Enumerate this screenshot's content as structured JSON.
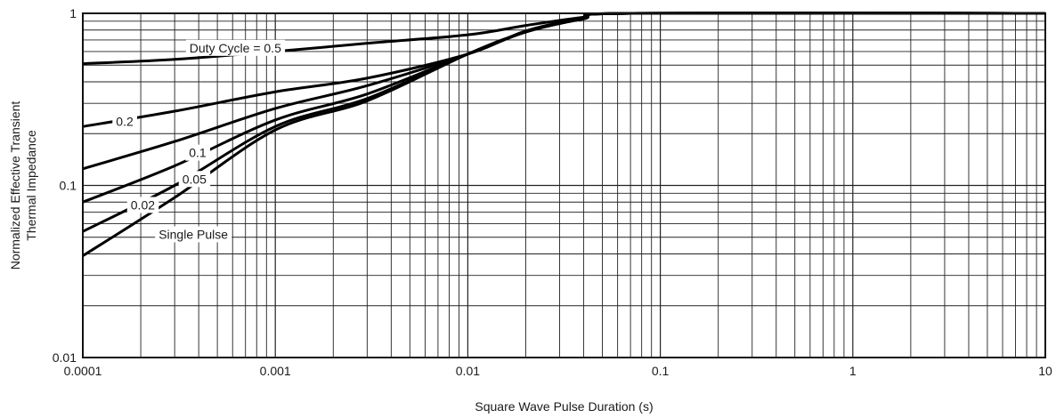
{
  "chart_data": {
    "type": "line",
    "xlabel": "Square Wave Pulse Duration (s)",
    "ylabel_line1": "Normalized Effective Transient",
    "ylabel_line2": "Thermal Impedance",
    "x_scale": "log",
    "y_scale": "log",
    "xlim": [
      0.0001,
      10
    ],
    "ylim": [
      0.01,
      1
    ],
    "grid": true,
    "x_ticks": [
      {
        "value": 0.0001,
        "label": "0.0001"
      },
      {
        "value": 0.001,
        "label": "0.001"
      },
      {
        "value": 0.01,
        "label": "0.01"
      },
      {
        "value": 0.1,
        "label": "0.1"
      },
      {
        "value": 1,
        "label": "1"
      },
      {
        "value": 10,
        "label": "10"
      }
    ],
    "y_ticks": [
      {
        "value": 0.01,
        "label": "0.01"
      },
      {
        "value": 0.1,
        "label": "0.1"
      },
      {
        "value": 1,
        "label": "1"
      }
    ],
    "series": [
      {
        "name": "Duty Cycle = 0.5",
        "label_at": [
          0.00062,
          0.63
        ],
        "points": [
          [
            0.0001,
            0.51
          ],
          [
            0.0003,
            0.54
          ],
          [
            0.001,
            0.6
          ],
          [
            0.003,
            0.67
          ],
          [
            0.01,
            0.75
          ],
          [
            0.02,
            0.85
          ],
          [
            0.04,
            0.95
          ],
          [
            0.07,
            1.0
          ],
          [
            10,
            1.0
          ]
        ]
      },
      {
        "name": "0.2",
        "label_at": [
          0.000165,
          0.235
        ],
        "points": [
          [
            0.0001,
            0.22
          ],
          [
            0.0003,
            0.27
          ],
          [
            0.001,
            0.35
          ],
          [
            0.003,
            0.42
          ],
          [
            0.01,
            0.58
          ],
          [
            0.02,
            0.79
          ],
          [
            0.04,
            0.94
          ],
          [
            0.07,
            1.0
          ],
          [
            10,
            1.0
          ]
        ]
      },
      {
        "name": "0.1",
        "label_at": [
          0.000395,
          0.155
        ],
        "points": [
          [
            0.0001,
            0.125
          ],
          [
            0.0003,
            0.18
          ],
          [
            0.001,
            0.28
          ],
          [
            0.003,
            0.38
          ],
          [
            0.01,
            0.58
          ],
          [
            0.02,
            0.78
          ],
          [
            0.04,
            0.93
          ],
          [
            0.07,
            1.0
          ],
          [
            10,
            1.0
          ]
        ]
      },
      {
        "name": "0.05",
        "label_at": [
          0.00038,
          0.109
        ],
        "points": [
          [
            0.0001,
            0.08
          ],
          [
            0.0003,
            0.13
          ],
          [
            0.001,
            0.24
          ],
          [
            0.003,
            0.34
          ],
          [
            0.01,
            0.58
          ],
          [
            0.02,
            0.78
          ],
          [
            0.04,
            0.93
          ],
          [
            0.07,
            1.0
          ],
          [
            10,
            1.0
          ]
        ]
      },
      {
        "name": "0.02",
        "label_at": [
          0.000205,
          0.077
        ],
        "points": [
          [
            0.0001,
            0.054
          ],
          [
            0.0003,
            0.1
          ],
          [
            0.001,
            0.22
          ],
          [
            0.003,
            0.32
          ],
          [
            0.01,
            0.58
          ],
          [
            0.02,
            0.78
          ],
          [
            0.04,
            0.93
          ],
          [
            0.07,
            1.0
          ],
          [
            10,
            1.0
          ]
        ]
      },
      {
        "name": "Single Pulse",
        "label_at": [
          0.000375,
          0.052
        ],
        "points": [
          [
            0.0001,
            0.039
          ],
          [
            0.0003,
            0.085
          ],
          [
            0.001,
            0.21
          ],
          [
            0.003,
            0.31
          ],
          [
            0.01,
            0.58
          ],
          [
            0.02,
            0.78
          ],
          [
            0.04,
            0.93
          ],
          [
            0.07,
            1.0
          ],
          [
            10,
            1.0
          ]
        ]
      }
    ]
  }
}
